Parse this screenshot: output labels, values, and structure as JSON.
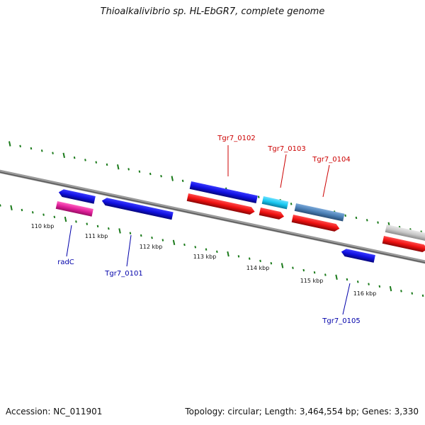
{
  "title": "Thioalkalivibrio sp. HL-EbGR7, complete genome",
  "footer": {
    "accession": "Accession: NC_011901",
    "summary": "Topology: circular; Length: 3,464,554 bp; Genes: 3,330"
  },
  "colors": {
    "backbone": "#7a7a7a",
    "tick": "#1a7a1a",
    "label_forward": "#cc0000",
    "label_reverse": "#0000aa",
    "gene_blue": "#1010e0",
    "gene_red": "#ee1010",
    "gene_magenta": "#e0209a",
    "gene_cyan": "#19c8f0",
    "gene_steel": "#4a7fb5",
    "gene_grey": "#c8c8c8"
  },
  "scale_labels": [
    "110 kbp",
    "111 kbp",
    "112 kbp",
    "113 kbp",
    "114 kbp",
    "115 kbp",
    "116 kbp"
  ],
  "genes": [
    {
      "id": "radC",
      "label": "radC",
      "strand": "reverse",
      "color": "magenta"
    },
    {
      "id": "radC-partner",
      "label": "",
      "strand": "reverse",
      "color": "blue"
    },
    {
      "id": "Tgr7_0101",
      "label": "Tgr7_0101",
      "strand": "reverse",
      "color": "blue"
    },
    {
      "id": "Tgr7_0102",
      "label": "Tgr7_0102",
      "strand": "forward",
      "color": "blue"
    },
    {
      "id": "Tgr7_0102-red",
      "label": "",
      "strand": "forward",
      "color": "red"
    },
    {
      "id": "Tgr7_0103",
      "label": "Tgr7_0103",
      "strand": "forward",
      "color": "cyan"
    },
    {
      "id": "Tgr7_0103-red",
      "label": "",
      "strand": "forward",
      "color": "red"
    },
    {
      "id": "Tgr7_0104",
      "label": "Tgr7_0104",
      "strand": "forward",
      "color": "steel"
    },
    {
      "id": "Tgr7_0104-red",
      "label": "",
      "strand": "forward",
      "color": "red"
    },
    {
      "id": "Tgr7_0105",
      "label": "Tgr7_0105",
      "strand": "reverse",
      "color": "blue"
    },
    {
      "id": "edge-grey",
      "label": "",
      "strand": "forward",
      "color": "grey"
    },
    {
      "id": "edge-red",
      "label": "",
      "strand": "forward",
      "color": "red"
    }
  ]
}
